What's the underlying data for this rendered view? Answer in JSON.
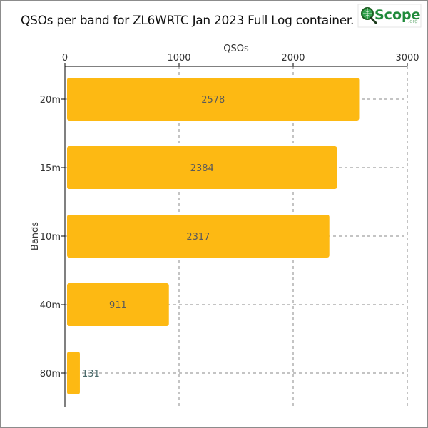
{
  "title": "QSOs per band for ZL6WRTC Jan 2023 Full Log container.",
  "logo": {
    "text": "Scope",
    "suffix": ".org",
    "icon": "magnifier-globe-icon"
  },
  "colors": {
    "bar": "#FDB913",
    "axis": "#000000",
    "grid": "#888888",
    "inner_label": "#5a5a5a",
    "outer_label": "#4a6a6a",
    "logo_green": "#1f8a3a"
  },
  "chart_data": {
    "type": "bar",
    "orientation": "horizontal",
    "title": "QSOs per band for ZL6WRTC Jan 2023 Full Log container.",
    "xlabel": "QSOs",
    "ylabel": "Bands",
    "xlim": [
      0,
      3000
    ],
    "xticks": [
      0,
      1000,
      2000,
      3000
    ],
    "x_axis_position": "top",
    "grid": "dashed vertical",
    "categories": [
      "20m",
      "15m",
      "10m",
      "40m",
      "80m"
    ],
    "values": [
      2578,
      2384,
      2317,
      911,
      131
    ]
  }
}
